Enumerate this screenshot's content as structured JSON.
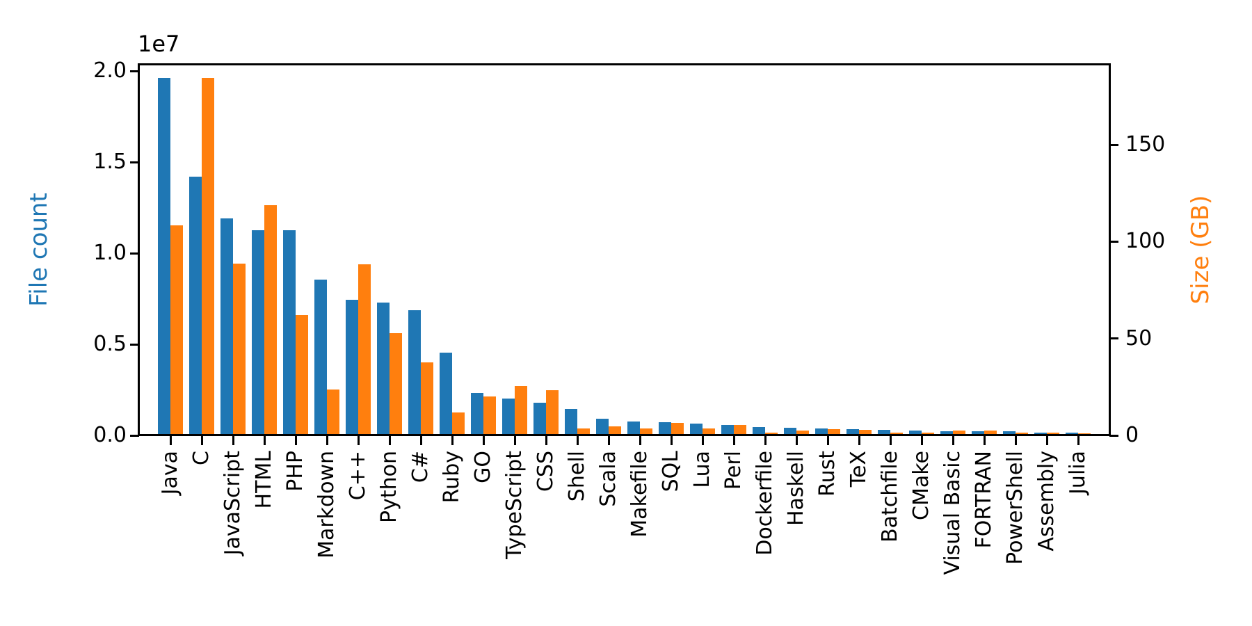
{
  "chart_data": {
    "type": "bar",
    "title": "",
    "categories": [
      "Java",
      "C",
      "JavaScript",
      "HTML",
      "PHP",
      "Markdown",
      "C++",
      "Python",
      "C#",
      "Ruby",
      "GO",
      "TypeScript",
      "CSS",
      "Shell",
      "Scala",
      "Makefile",
      "SQL",
      "Lua",
      "Perl",
      "Dockerfile",
      "Haskell",
      "Rust",
      "TeX",
      "Batchfile",
      "CMake",
      "Visual Basic",
      "FORTRAN",
      "PowerShell",
      "Assembly",
      "Julia"
    ],
    "series": [
      {
        "name": "File count",
        "axis": "left",
        "color": "#1f77b4",
        "values": [
          19548190,
          14143113,
          11839883,
          11178557,
          11177610,
          8464626,
          7380520,
          7226626,
          6811652,
          4473331,
          2265436,
          1940406,
          1734406,
          1385648,
          835755,
          679430,
          656671,
          578554,
          497949,
          366505,
          340623,
          322431,
          251015,
          236945,
          175282,
          155652,
          142038,
          136846,
          82905,
          58317
        ]
      },
      {
        "name": "Size (GB)",
        "axis": "right",
        "color": "#ff7f0e",
        "values": [
          107.7,
          183.83,
          87.82,
          118.12,
          61.41,
          23.09,
          87.73,
          52.03,
          36.83,
          10.95,
          19.28,
          24.59,
          22.67,
          3.01,
          3.87,
          2.92,
          5.67,
          2.81,
          4.7,
          0.71,
          1.85,
          2.68,
          2.15,
          0.7,
          0.54,
          1.91,
          1.62,
          0.69,
          0.78,
          0.29
        ]
      }
    ],
    "left_axis": {
      "label": "File count",
      "color": "#1f77b4",
      "offset_text": "1e7",
      "ticks": [
        "0.0",
        "0.5",
        "1.0",
        "1.5",
        "2.0"
      ],
      "tick_values": [
        0,
        5000000,
        10000000,
        15000000,
        20000000
      ],
      "range": [
        0,
        20360000
      ]
    },
    "right_axis": {
      "label": "Size (GB)",
      "color": "#ff7f0e",
      "ticks": [
        "0",
        "50",
        "100",
        "150"
      ],
      "tick_values": [
        0,
        50,
        100,
        150
      ],
      "range": [
        0,
        191.3
      ]
    },
    "grid": false,
    "legend": "none",
    "bar_group": {
      "series_per_category": 2,
      "order": [
        "File count",
        "Size (GB)"
      ]
    },
    "background_color": "#ffffff",
    "axis_line_color": "#000000"
  }
}
